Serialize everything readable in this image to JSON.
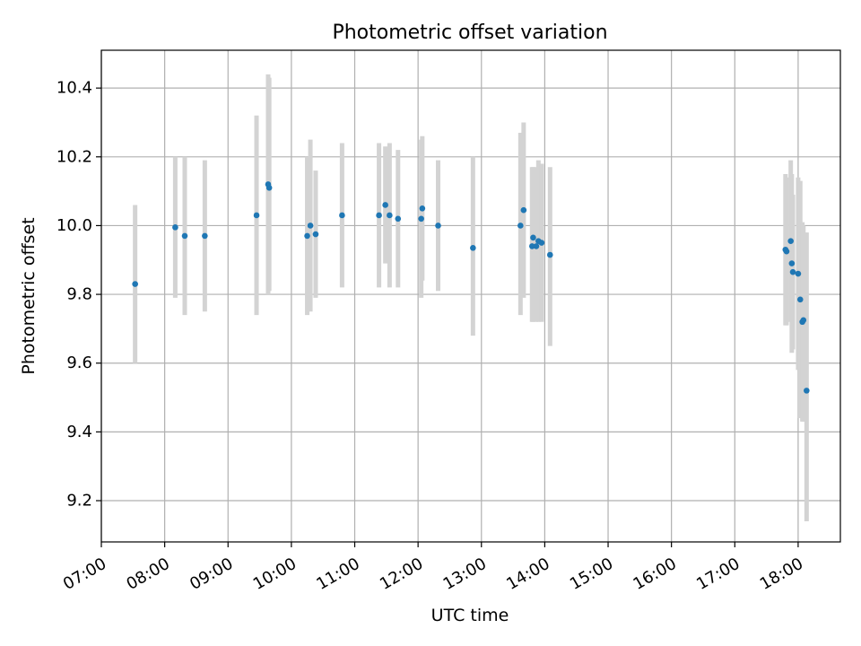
{
  "chart_data": {
    "type": "scatter",
    "title": "Photometric offset variation",
    "xlabel": "UTC time",
    "ylabel": "Photometric offset",
    "x_ticks": [
      "07:00",
      "08:00",
      "09:00",
      "10:00",
      "11:00",
      "12:00",
      "13:00",
      "14:00",
      "15:00",
      "16:00",
      "17:00",
      "18:00"
    ],
    "xlim": [
      "07:00",
      "18:40"
    ],
    "y_ticks": [
      "9.2",
      "9.4",
      "9.6",
      "9.8",
      "10.0",
      "10.2",
      "10.4"
    ],
    "ylim": [
      9.08,
      10.51
    ],
    "grid": true,
    "colors": {
      "points": "#1f77b4",
      "errorbars": "#d3d3d3",
      "grid": "#b0b0b0"
    },
    "series": [
      {
        "points": [
          {
            "t": "07:32",
            "y": 9.83,
            "lo": 9.6,
            "hi": 10.06
          },
          {
            "t": "08:10",
            "y": 9.995,
            "lo": 9.79,
            "hi": 10.2
          },
          {
            "t": "08:19",
            "y": 9.97,
            "lo": 9.74,
            "hi": 10.2
          },
          {
            "t": "08:38",
            "y": 9.97,
            "lo": 9.75,
            "hi": 10.19
          },
          {
            "t": "09:27",
            "y": 10.03,
            "lo": 9.74,
            "hi": 10.32
          },
          {
            "t": "09:38",
            "y": 10.12,
            "lo": 9.8,
            "hi": 10.44
          },
          {
            "t": "09:39",
            "y": 10.11,
            "lo": 9.81,
            "hi": 10.43
          },
          {
            "t": "10:15",
            "y": 9.97,
            "lo": 9.74,
            "hi": 10.2
          },
          {
            "t": "10:18",
            "y": 10.0,
            "lo": 9.75,
            "hi": 10.25
          },
          {
            "t": "10:23",
            "y": 9.975,
            "lo": 9.79,
            "hi": 10.16
          },
          {
            "t": "10:48",
            "y": 10.03,
            "lo": 9.82,
            "hi": 10.24
          },
          {
            "t": "11:23",
            "y": 10.03,
            "lo": 9.82,
            "hi": 10.24
          },
          {
            "t": "11:29",
            "y": 10.06,
            "lo": 9.89,
            "hi": 10.23
          },
          {
            "t": "11:33",
            "y": 10.03,
            "lo": 9.82,
            "hi": 10.24
          },
          {
            "t": "11:41",
            "y": 10.02,
            "lo": 9.82,
            "hi": 10.22
          },
          {
            "t": "12:03",
            "y": 10.02,
            "lo": 9.79,
            "hi": 10.25
          },
          {
            "t": "12:04",
            "y": 10.05,
            "lo": 9.84,
            "hi": 10.26
          },
          {
            "t": "12:19",
            "y": 10.0,
            "lo": 9.81,
            "hi": 10.19
          },
          {
            "t": "12:52",
            "y": 9.935,
            "lo": 9.68,
            "hi": 10.2
          },
          {
            "t": "13:37",
            "y": 10.0,
            "lo": 9.74,
            "hi": 10.27
          },
          {
            "t": "13:40",
            "y": 10.045,
            "lo": 9.79,
            "hi": 10.3
          },
          {
            "t": "13:48",
            "y": 9.94,
            "lo": 9.72,
            "hi": 10.17
          },
          {
            "t": "13:49",
            "y": 9.965,
            "lo": 9.72,
            "hi": 10.17
          },
          {
            "t": "13:52",
            "y": 9.94,
            "lo": 9.72,
            "hi": 10.17
          },
          {
            "t": "13:54",
            "y": 9.955,
            "lo": 9.72,
            "hi": 10.19
          },
          {
            "t": "13:57",
            "y": 9.95,
            "lo": 9.72,
            "hi": 10.18
          },
          {
            "t": "14:05",
            "y": 9.915,
            "lo": 9.65,
            "hi": 10.17
          },
          {
            "t": "17:48",
            "y": 9.93,
            "lo": 9.71,
            "hi": 10.15
          },
          {
            "t": "17:49",
            "y": 9.925,
            "lo": 9.71,
            "hi": 10.14
          },
          {
            "t": "17:53",
            "y": 9.955,
            "lo": 9.72,
            "hi": 10.19
          },
          {
            "t": "17:54",
            "y": 9.89,
            "lo": 9.63,
            "hi": 10.15
          },
          {
            "t": "17:55",
            "y": 9.865,
            "lo": 9.64,
            "hi": 10.09
          },
          {
            "t": "18:00",
            "y": 9.86,
            "lo": 9.58,
            "hi": 10.14
          },
          {
            "t": "18:02",
            "y": 9.785,
            "lo": 9.44,
            "hi": 10.13
          },
          {
            "t": "18:04",
            "y": 9.72,
            "lo": 9.43,
            "hi": 10.01
          },
          {
            "t": "18:05",
            "y": 9.725,
            "lo": 9.43,
            "hi": 10.0
          },
          {
            "t": "18:08",
            "y": 9.52,
            "lo": 9.14,
            "hi": 9.98
          }
        ]
      }
    ]
  }
}
